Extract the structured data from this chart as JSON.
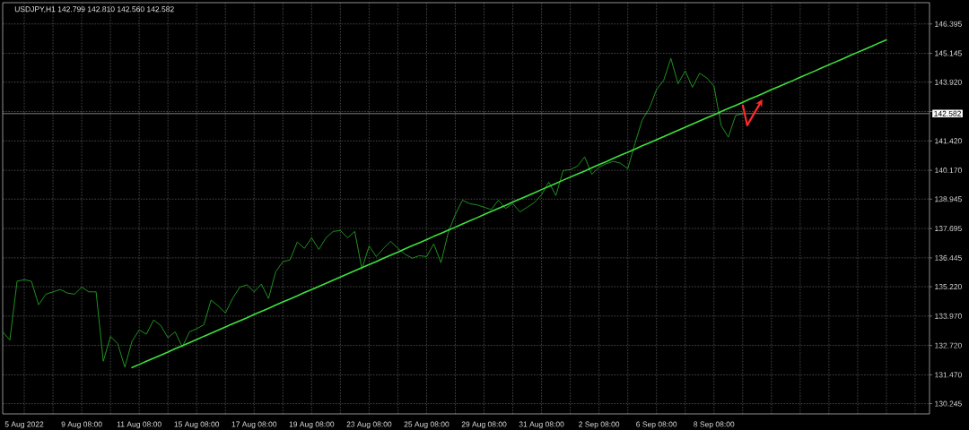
{
  "chart_data": {
    "type": "line",
    "title": "USDJPY,H1 142.799 142.810 142.560 142.582",
    "categories": [
      null,
      null,
      null,
      "5 Aug 2022",
      null,
      null,
      null,
      null,
      null,
      null,
      null,
      "9 Aug 08:00",
      null,
      null,
      null,
      null,
      null,
      null,
      null,
      "11 Aug 08:00",
      null,
      null,
      null,
      null,
      null,
      null,
      null,
      "15 Aug 08:00",
      null,
      null,
      null,
      null,
      null,
      null,
      null,
      "17 Aug 08:00",
      null,
      null,
      null,
      null,
      null,
      null,
      null,
      "19 Aug 08:00",
      null,
      null,
      null,
      null,
      null,
      null,
      null,
      "23 Aug 08:00",
      null,
      null,
      null,
      null,
      null,
      null,
      null,
      "25 Aug 08:00",
      null,
      null,
      null,
      null,
      null,
      null,
      null,
      "29 Aug 08:00",
      null,
      null,
      null,
      null,
      null,
      null,
      null,
      "31 Aug 08:00",
      null,
      null,
      null,
      null,
      null,
      null,
      null,
      "2 Sep 08:00",
      null,
      null,
      null,
      null,
      null,
      null,
      null,
      "6 Sep 08:00",
      null,
      null,
      null,
      null,
      null,
      null,
      null,
      "8 Sep 08:00",
      null,
      null,
      null,
      null,
      null,
      null,
      null,
      null,
      null,
      null,
      null,
      null,
      null,
      null,
      null,
      null,
      null,
      null,
      null,
      null,
      null,
      null,
      null,
      null,
      null,
      null,
      null,
      null,
      null,
      null
    ],
    "ylim": [
      129.81,
      147.3
    ],
    "yticks": [
      130.245,
      {
        "value": 131.47,
        "label": "131.470"
      },
      {
        "value": 132.72,
        "label": "132.720"
      },
      {
        "value": 133.97,
        "label": "133.970"
      },
      {
        "value": 135.22,
        "label": "135.220"
      },
      136.445,
      137.695,
      138.945,
      {
        "value": 140.17,
        "label": "140.170"
      },
      {
        "value": 141.42,
        "label": "141.420"
      },
      {
        "value": 142.67,
        "label": null
      },
      {
        "value": 143.92,
        "label": "143.920"
      },
      145.145,
      146.395
    ],
    "grid": true,
    "ref_lines": [
      {
        "axis": "y",
        "value": 142.582,
        "label": "142.582",
        "color": "#9a9a9a"
      }
    ],
    "series": [
      {
        "color": "#22a022",
        "values": [
          133.3,
          132.95,
          135.45,
          135.52,
          135.45,
          134.45,
          134.9,
          135.0,
          135.1,
          134.95,
          134.9,
          135.2,
          135.0,
          135.0,
          132.05,
          133.1,
          132.8,
          131.8,
          132.9,
          133.38,
          133.2,
          133.8,
          133.57,
          133.05,
          133.3,
          132.66,
          133.3,
          133.43,
          133.6,
          134.65,
          134.4,
          134.1,
          134.72,
          135.2,
          135.3,
          135.0,
          135.33,
          134.72,
          135.86,
          136.28,
          136.36,
          137.12,
          136.85,
          137.3,
          136.8,
          137.3,
          137.57,
          137.61,
          137.3,
          137.57,
          135.97,
          136.95,
          136.5,
          136.85,
          137.15,
          136.85,
          136.6,
          136.43,
          136.54,
          136.5,
          137.04,
          136.24,
          137.5,
          138.3,
          138.9,
          138.75,
          138.7,
          138.6,
          138.5,
          138.9,
          138.55,
          138.75,
          138.4,
          138.6,
          138.8,
          139.13,
          139.67,
          139.1,
          140.16,
          140.2,
          140.35,
          140.74,
          140.0,
          140.3,
          140.45,
          140.55,
          140.47,
          140.24,
          141.31,
          142.3,
          142.8,
          143.6,
          144.0,
          144.93,
          143.85,
          144.4,
          143.7,
          144.3,
          144.1,
          143.75,
          142.07,
          141.58,
          142.5,
          142.58,
          null,
          null,
          null,
          null,
          null,
          null,
          null,
          null,
          null,
          null,
          null,
          null,
          null,
          null,
          null,
          null,
          null,
          null,
          null,
          null,
          null,
          null,
          null,
          null,
          null,
          null
        ]
      },
      {
        "color": "#3ee03e",
        "values": [
          null,
          null,
          null,
          null,
          null,
          null,
          null,
          null,
          null,
          null,
          null,
          null,
          null,
          null,
          null,
          null,
          null,
          null,
          131.78,
          131.91,
          132.05,
          132.18,
          132.31,
          132.44,
          132.58,
          132.71,
          132.84,
          132.97,
          133.11,
          133.24,
          133.37,
          133.51,
          133.64,
          133.77,
          133.9,
          134.04,
          134.17,
          134.3,
          134.44,
          134.57,
          134.7,
          134.83,
          134.97,
          135.1,
          135.23,
          135.36,
          135.5,
          135.63,
          135.76,
          135.9,
          136.03,
          136.16,
          136.29,
          136.43,
          136.56,
          136.69,
          136.83,
          136.96,
          137.09,
          137.22,
          137.36,
          137.49,
          137.62,
          137.75,
          137.89,
          138.02,
          138.15,
          138.29,
          138.42,
          138.55,
          138.68,
          138.82,
          138.95,
          139.08,
          139.21,
          139.35,
          139.48,
          139.61,
          139.75,
          139.88,
          140.01,
          140.14,
          140.28,
          140.41,
          140.54,
          140.68,
          140.81,
          140.94,
          141.07,
          141.21,
          141.34,
          141.47,
          141.6,
          141.74,
          141.87,
          142.0,
          142.14,
          142.27,
          142.4,
          142.53,
          142.67,
          142.8,
          142.93,
          143.06,
          143.2,
          143.33,
          143.46,
          143.6,
          143.73,
          143.86,
          143.99,
          144.13,
          144.26,
          144.39,
          144.53,
          144.66,
          144.79,
          144.92,
          145.06,
          145.19,
          145.32,
          145.45,
          145.59,
          145.72,
          null,
          null,
          null,
          null,
          null,
          null
        ]
      }
    ]
  }
}
